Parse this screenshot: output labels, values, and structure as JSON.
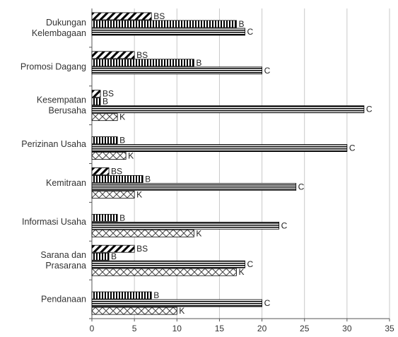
{
  "chart_data": {
    "type": "bar",
    "orientation": "horizontal",
    "title": "",
    "xlabel": "",
    "ylabel": "",
    "xlim": [
      0,
      35
    ],
    "xticks": [
      0,
      5,
      10,
      15,
      20,
      25,
      30,
      35
    ],
    "grid": "vertical",
    "legend": "none",
    "categories": [
      {
        "label_lines": [
          "Dukungan",
          "Kelembagaan"
        ],
        "bars": [
          {
            "series": "BS",
            "value": 7
          },
          {
            "series": "B",
            "value": 17
          },
          {
            "series": "C",
            "value": 18
          }
        ]
      },
      {
        "label_lines": [
          "Promosi Dagang"
        ],
        "bars": [
          {
            "series": "BS",
            "value": 5
          },
          {
            "series": "B",
            "value": 12
          },
          {
            "series": "C",
            "value": 20
          }
        ]
      },
      {
        "label_lines": [
          "Kesempatan",
          "Berusaha"
        ],
        "bars": [
          {
            "series": "BS",
            "value": 1
          },
          {
            "series": "B",
            "value": 1
          },
          {
            "series": "C",
            "value": 32
          },
          {
            "series": "K",
            "value": 3
          }
        ]
      },
      {
        "label_lines": [
          "Perizinan Usaha"
        ],
        "bars": [
          {
            "series": "B",
            "value": 3
          },
          {
            "series": "C",
            "value": 30
          },
          {
            "series": "K",
            "value": 4
          }
        ]
      },
      {
        "label_lines": [
          "Kemitraan"
        ],
        "bars": [
          {
            "series": "BS",
            "value": 2
          },
          {
            "series": "B",
            "value": 6
          },
          {
            "series": "C",
            "value": 24
          },
          {
            "series": "K",
            "value": 5
          }
        ]
      },
      {
        "label_lines": [
          "Informasi Usaha"
        ],
        "bars": [
          {
            "series": "B",
            "value": 3
          },
          {
            "series": "C",
            "value": 22
          },
          {
            "series": "K",
            "value": 12
          }
        ]
      },
      {
        "label_lines": [
          "Sarana dan",
          "Prasarana"
        ],
        "bars": [
          {
            "series": "BS",
            "value": 5
          },
          {
            "series": "B",
            "value": 2
          },
          {
            "series": "C",
            "value": 18
          },
          {
            "series": "K",
            "value": 17
          }
        ]
      },
      {
        "label_lines": [
          "Pendanaan"
        ],
        "bars": [
          {
            "series": "B",
            "value": 7
          },
          {
            "series": "C",
            "value": 20
          },
          {
            "series": "K",
            "value": 10
          }
        ]
      }
    ],
    "series_styles": {
      "BS": {
        "pattern": "diagonal-stripes"
      },
      "B": {
        "pattern": "vertical-stripes"
      },
      "C": {
        "pattern": "horizontal-stripes"
      },
      "K": {
        "pattern": "crosshatch"
      }
    },
    "colors": {
      "ink": "#000000",
      "grid": "#c8c8c8",
      "bar_fill": "#ffffff"
    }
  }
}
